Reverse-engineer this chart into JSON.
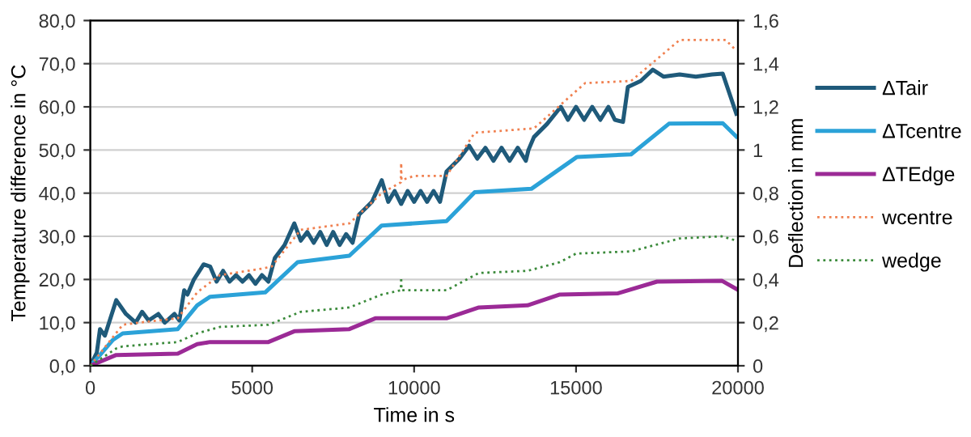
{
  "chart_data": {
    "type": "line",
    "xlabel": "Time in s",
    "ylabel": "Temperature difference in °C",
    "y2label": "Deflection in mm",
    "xlim": [
      0,
      20000
    ],
    "xticks": [
      0,
      5000,
      10000,
      15000,
      20000
    ],
    "ylim": [
      0,
      80
    ],
    "yticks": [
      {
        "value": 0,
        "label": "0,0"
      },
      {
        "value": 10,
        "label": "10,0"
      },
      {
        "value": 20,
        "label": "20,0"
      },
      {
        "value": 30,
        "label": "30,0"
      },
      {
        "value": 40,
        "label": "40,0"
      },
      {
        "value": 50,
        "label": "50,0"
      },
      {
        "value": 60,
        "label": "60,0"
      },
      {
        "value": 70,
        "label": "70,0"
      },
      {
        "value": 80,
        "label": "80,0"
      }
    ],
    "y2lim": [
      0,
      1.6
    ],
    "y2ticks": [
      0,
      {
        "value": 0.2,
        "label": "0,2"
      },
      {
        "value": 0.4,
        "label": "0,4"
      },
      {
        "value": 0.6,
        "label": "0,6"
      },
      {
        "value": 0.8,
        "label": "0,8"
      },
      1,
      {
        "value": 1.2,
        "label": "1,2"
      },
      {
        "value": 1.4,
        "label": "1,4"
      },
      {
        "value": 1.6,
        "label": "1,6"
      }
    ],
    "grid": "y",
    "legend": "right",
    "marker": "none",
    "series": [
      {
        "name": "ΔTair",
        "color": "#1f5a7a",
        "line_style": "solid",
        "x": [
          0,
          200,
          300,
          450,
          800,
          1100,
          1400,
          1600,
          1800,
          2100,
          2300,
          2600,
          2750,
          2900,
          3000,
          3200,
          3500,
          3700,
          3900,
          4100,
          4300,
          4500,
          4700,
          4900,
          5100,
          5300,
          5500,
          5700,
          6000,
          6300,
          6500,
          6700,
          6900,
          7100,
          7300,
          7500,
          7700,
          7900,
          8100,
          8300,
          8700,
          9000,
          9200,
          9400,
          9600,
          9800,
          10000,
          10200,
          10400,
          10600,
          10800,
          11000,
          11400,
          11700,
          11950,
          12200,
          12450,
          12700,
          12950,
          13200,
          13450,
          13530,
          13700,
          14100,
          14530,
          14750,
          15000,
          15250,
          15500,
          15750,
          16000,
          16200,
          16450,
          16600,
          17000,
          17370,
          17700,
          18200,
          18700,
          19200,
          19530,
          19950
        ],
        "values": [
          0,
          3,
          8.5,
          7,
          15.2,
          12,
          10,
          12.5,
          10.5,
          12,
          10,
          12,
          10.5,
          17.5,
          16.5,
          20,
          23.5,
          23,
          19.5,
          22,
          19.5,
          21,
          19.5,
          21,
          19,
          21,
          19.5,
          25,
          28,
          33,
          29,
          31,
          28.5,
          31,
          28,
          31,
          28,
          30.5,
          28.5,
          35,
          38,
          43,
          38,
          40.5,
          37.5,
          40.5,
          38,
          40.5,
          38,
          40.5,
          38,
          45,
          48,
          51,
          48,
          50.5,
          47.5,
          50.5,
          47.5,
          50.5,
          47.5,
          50,
          53,
          56,
          60,
          57,
          60,
          57,
          60,
          57,
          60,
          57,
          56.5,
          64.6,
          66,
          68.6,
          67,
          67.5,
          67,
          67.5,
          67.7,
          58.4
        ]
      },
      {
        "name": "ΔTcentre",
        "color": "#2ba2d8",
        "line_style": "solid",
        "x": [
          0,
          300,
          700,
          1000,
          2700,
          3300,
          3700,
          5400,
          6400,
          8000,
          9000,
          11000,
          11870,
          13620,
          15030,
          16700,
          17870,
          19530,
          19950
        ],
        "values": [
          0,
          2.5,
          6,
          7.5,
          8.5,
          14,
          16,
          17,
          24,
          25.5,
          32.5,
          33.5,
          40.2,
          41,
          48.4,
          49,
          56.1,
          56.2,
          53.1
        ]
      },
      {
        "name": "ΔTEdge",
        "color": "#9b2a96",
        "line_style": "solid",
        "x": [
          0,
          800,
          2700,
          3300,
          3700,
          5500,
          6300,
          8000,
          8800,
          11000,
          12000,
          13500,
          14500,
          16300,
          17500,
          19500,
          19950
        ],
        "values": [
          0,
          2.5,
          2.8,
          5,
          5.5,
          5.5,
          8,
          8.5,
          11,
          11,
          13.5,
          14,
          16.5,
          16.8,
          19.5,
          19.7,
          17.8
        ]
      },
      {
        "name": "wcentre",
        "color": "#f08050",
        "line_style": "dotted",
        "axis": "y2",
        "x": [
          0,
          1000,
          1500,
          2700,
          3300,
          4000,
          5300,
          5600,
          6500,
          8000,
          9000,
          9590,
          9600,
          9610,
          10000,
          11000,
          11870,
          13700,
          15280,
          16700,
          18200,
          19620,
          19950
        ],
        "values": [
          0,
          0.19,
          0.2,
          0.22,
          0.34,
          0.42,
          0.45,
          0.46,
          0.63,
          0.66,
          0.8,
          0.85,
          0.94,
          0.86,
          0.88,
          0.88,
          1.08,
          1.1,
          1.31,
          1.32,
          1.51,
          1.51,
          1.46
        ]
      },
      {
        "name": "wedge",
        "color": "#3a8a3a",
        "line_style": "dotted",
        "axis": "y2",
        "x": [
          0,
          800,
          1000,
          2700,
          3300,
          4000,
          5500,
          6500,
          8000,
          9000,
          9590,
          9600,
          9610,
          10000,
          11000,
          12000,
          13500,
          14500,
          15000,
          16700,
          18200,
          19500,
          19950
        ],
        "values": [
          0,
          0.08,
          0.09,
          0.11,
          0.15,
          0.18,
          0.19,
          0.25,
          0.27,
          0.33,
          0.35,
          0.41,
          0.35,
          0.35,
          0.35,
          0.43,
          0.44,
          0.48,
          0.52,
          0.53,
          0.59,
          0.6,
          0.58
        ]
      }
    ]
  }
}
